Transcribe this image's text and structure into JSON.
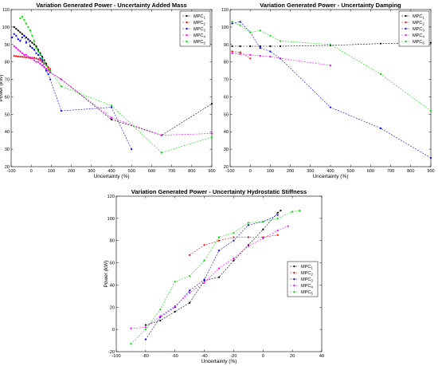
{
  "chart_data": [
    {
      "type": "line",
      "title": "Variation Generated Power - Uncertainty Added Mass",
      "xlabel": "Uncertainty (%)",
      "ylabel": "Power (kW)",
      "xlim": [
        -100,
        900
      ],
      "ylim": [
        20,
        110
      ],
      "xticks": [
        -100,
        0,
        100,
        200,
        300,
        400,
        500,
        600,
        700,
        800,
        900
      ],
      "yticks": [
        20,
        30,
        40,
        50,
        60,
        70,
        80,
        90,
        100,
        110
      ],
      "grid": false,
      "legend_position": "top-right",
      "series": [
        {
          "name": "MPC",
          "sub": "1",
          "color": "#000000",
          "x": [
            -85,
            -75,
            -65,
            -55,
            -45,
            -35,
            -25,
            -15,
            -5,
            5,
            15,
            25,
            35,
            45,
            55,
            65,
            75,
            85,
            95,
            150,
            400,
            650,
            900
          ],
          "y": [
            100,
            99,
            98,
            97,
            96,
            95,
            94,
            93,
            92,
            91,
            90,
            89,
            87,
            85,
            83,
            81,
            79,
            77,
            74,
            70,
            47,
            38,
            56
          ]
        },
        {
          "name": "MPC",
          "sub": "2",
          "color": "#ff0000",
          "x": [
            -85,
            -75,
            -65,
            -55,
            -45,
            -35,
            -25,
            -15,
            -5,
            5,
            15,
            25,
            35,
            45,
            55,
            65,
            75,
            85,
            95
          ],
          "y": [
            83.5,
            83.3,
            83.1,
            83,
            82.9,
            82.8,
            82.7,
            82.6,
            82.5,
            82.4,
            82.3,
            82,
            81.5,
            81,
            80,
            79,
            78,
            77,
            76
          ]
        },
        {
          "name": "MPC",
          "sub": "3",
          "color": "#0000ff",
          "x": [
            -95,
            -85,
            -75,
            -65,
            -55,
            -45,
            -35,
            -25,
            -15,
            -5,
            5,
            15,
            25,
            35,
            45,
            55,
            65,
            75,
            85,
            95,
            150,
            400,
            500
          ],
          "y": [
            94,
            96,
            95,
            93,
            92,
            94,
            95,
            91,
            93,
            89,
            88,
            87,
            85,
            84,
            82,
            81,
            77,
            75,
            73,
            70,
            52,
            54,
            30
          ]
        },
        {
          "name": "MPC",
          "sub": "4",
          "color": "#ff00ff",
          "x": [
            -85,
            -75,
            -65,
            -55,
            -45,
            -35,
            -25,
            -15,
            -5,
            5,
            15,
            25,
            35,
            45,
            55,
            65,
            75,
            85,
            95,
            150,
            400,
            650,
            900
          ],
          "y": [
            89,
            88,
            87,
            86,
            85,
            84,
            84,
            83,
            82,
            82,
            81,
            80,
            80,
            79,
            78,
            77,
            76,
            75,
            74,
            70,
            48,
            38,
            39
          ]
        },
        {
          "name": "MPC",
          "sub": "5",
          "color": "#00dd00",
          "x": [
            -55,
            -45,
            -35,
            -25,
            -15,
            -5,
            5,
            15,
            25,
            35,
            45,
            55,
            65,
            75,
            85,
            95,
            150,
            400,
            650,
            900
          ],
          "y": [
            105,
            106,
            104,
            102,
            100,
            98,
            95,
            92,
            88,
            86,
            84,
            82,
            80,
            78,
            76,
            75,
            66,
            55,
            28,
            37
          ]
        }
      ]
    },
    {
      "type": "line",
      "title": "Variation Generated Power - Uncertainty Damping",
      "xlabel": "Uncertainty (%)",
      "ylabel": "",
      "xlim": [
        -100,
        900
      ],
      "ylim": [
        20,
        110
      ],
      "xticks": [
        -100,
        0,
        100,
        200,
        300,
        400,
        500,
        600,
        700,
        800,
        900
      ],
      "yticks": [
        20,
        30,
        40,
        50,
        60,
        70,
        80,
        90,
        100,
        110
      ],
      "grid": false,
      "legend_position": "top-right",
      "series": [
        {
          "name": "MPC",
          "sub": "1",
          "color": "#000000",
          "x": [
            -90,
            -50,
            0,
            50,
            100,
            150,
            400,
            650,
            900
          ],
          "y": [
            89,
            89,
            89,
            89,
            89,
            89,
            89.5,
            90.5,
            91
          ]
        },
        {
          "name": "MPC",
          "sub": "2",
          "color": "#ff0000",
          "x": [
            -90,
            -50,
            0
          ],
          "y": [
            86,
            85.5,
            82
          ]
        },
        {
          "name": "MPC",
          "sub": "3",
          "color": "#0000ff",
          "x": [
            -90,
            -50,
            0,
            50,
            100,
            150,
            400,
            650,
            900
          ],
          "y": [
            102,
            103,
            97,
            88,
            86,
            82,
            54,
            42,
            25
          ]
        },
        {
          "name": "MPC",
          "sub": "4",
          "color": "#ff00ff",
          "x": [
            -90,
            -50,
            0,
            50,
            100,
            150,
            400
          ],
          "y": [
            85,
            84.5,
            84,
            83.5,
            83,
            82,
            78
          ]
        },
        {
          "name": "MPC",
          "sub": "5",
          "color": "#00dd00",
          "x": [
            -90,
            -50,
            0,
            50,
            100,
            150,
            400,
            650,
            900
          ],
          "y": [
            103,
            101,
            97,
            98,
            95,
            92,
            90,
            73,
            52
          ]
        }
      ]
    },
    {
      "type": "line",
      "title": "Variation Generated Power - Uncertainty Hydrostatic Stiffness",
      "xlabel": "Uncertainty (%)",
      "ylabel": "Power (kW)",
      "xlim": [
        -100,
        40
      ],
      "ylim": [
        -20,
        120
      ],
      "xticks": [
        -100,
        -80,
        -60,
        -40,
        -20,
        0,
        20,
        40
      ],
      "yticks": [
        -20,
        0,
        20,
        40,
        60,
        80,
        100,
        120
      ],
      "grid": false,
      "legend_position": "center-right",
      "series": [
        {
          "name": "MPC",
          "sub": "1",
          "color": "#000000",
          "x": [
            -80,
            -70,
            -60,
            -50,
            -40,
            -30,
            -20,
            -10,
            0,
            10,
            12
          ],
          "y": [
            4,
            8,
            16,
            24,
            44,
            47,
            62,
            76,
            90,
            105,
            107
          ]
        },
        {
          "name": "MPC",
          "sub": "2",
          "color": "#ff0000",
          "x": [
            -50,
            -40,
            -30,
            -20,
            -10,
            0,
            10
          ],
          "y": [
            67,
            76,
            80,
            83,
            83,
            83,
            85
          ]
        },
        {
          "name": "MPC",
          "sub": "3",
          "color": "#0000ff",
          "x": [
            -80,
            -70,
            -60,
            -50,
            -40,
            -30,
            -20,
            -10,
            0,
            10
          ],
          "y": [
            -9,
            11,
            20,
            35,
            45,
            71,
            80,
            94,
            97,
            103
          ]
        },
        {
          "name": "MPC",
          "sub": "4",
          "color": "#ff00ff",
          "x": [
            -90,
            -80,
            -70,
            -60,
            -50,
            -40,
            -30,
            -20,
            -10,
            0,
            10,
            17
          ],
          "y": [
            1,
            2,
            12,
            21,
            33,
            42,
            55,
            64,
            75,
            82,
            89,
            93
          ]
        },
        {
          "name": "MPC",
          "sub": "5",
          "color": "#00dd00",
          "x": [
            -90,
            -80,
            -70,
            -60,
            -50,
            -40,
            -30,
            -20,
            -10,
            0,
            10,
            20,
            25
          ],
          "y": [
            -13,
            0,
            18,
            43,
            48,
            62,
            83,
            87,
            96,
            97,
            100,
            106,
            107
          ]
        }
      ]
    }
  ]
}
